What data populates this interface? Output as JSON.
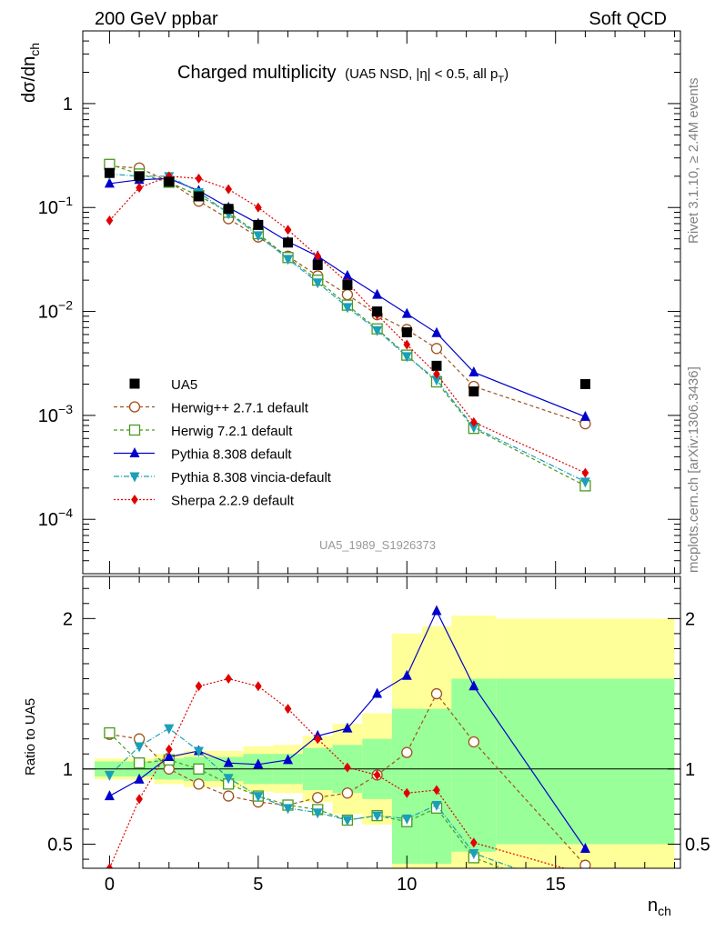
{
  "header": {
    "left": "200 GeV ppbar",
    "right": "Soft QCD"
  },
  "side_labels": {
    "top": "Rivet 3.1.10, ≥ 2.4M events",
    "bottom": "mcplots.cern.ch [arXiv:1306.3436]"
  },
  "chart_data": {
    "type": "line",
    "title": "Charged multiplicity",
    "title_qualifier": "(UA5 NSD, |η| < 0.5, all p",
    "title_qualifier_sub": "T",
    "title_qualifier_end": ")",
    "analysis_tag": "UA5_1989_S1926373",
    "ylabel_main": "dσ/dn",
    "ylabel_main_sub": "ch",
    "ylabel_ratio": "Ratio to UA5",
    "xlabel": "n",
    "xlabel_sub": "ch",
    "xlim": [
      -0.9,
      19.2
    ],
    "ylim_main": [
      3e-05,
      5.0
    ],
    "yscale_main": "log",
    "ylim_ratio": [
      0.34,
      2.28
    ],
    "x_ticks": [
      "0",
      "5",
      "10",
      "15"
    ],
    "y_ticks_main": [
      {
        "value": 1,
        "base": "1",
        "exp": ""
      },
      {
        "value": 0.1,
        "base": "10",
        "exp": "−1"
      },
      {
        "value": 0.01,
        "base": "10",
        "exp": "−2"
      },
      {
        "value": 0.001,
        "base": "10",
        "exp": "−3"
      },
      {
        "value": 0.0001,
        "base": "10",
        "exp": "−4"
      }
    ],
    "y_ticks_ratio": [
      "0.5",
      "1",
      "2"
    ],
    "legend_position": "middle-left",
    "data": {
      "name": "UA5",
      "x": [
        0,
        1,
        2,
        3,
        4,
        5,
        6,
        7,
        8,
        9,
        10,
        11,
        12.25,
        16
      ],
      "y": [
        0.215,
        0.2,
        0.177,
        0.128,
        0.097,
        0.068,
        0.046,
        0.028,
        0.018,
        0.01,
        0.0063,
        0.003,
        0.0017,
        0.002
      ]
    },
    "uncertainty_bands": {
      "edges": [
        -0.5,
        0.5,
        1.5,
        2.5,
        3.5,
        4.5,
        5.5,
        6.5,
        7.5,
        8.5,
        9.5,
        10.5,
        11.5,
        13,
        19
      ],
      "inner": [
        [
          0.95,
          1.05
        ],
        [
          0.95,
          1.05
        ],
        [
          0.93,
          1.07
        ],
        [
          0.92,
          1.08
        ],
        [
          0.92,
          1.08
        ],
        [
          0.9,
          1.1
        ],
        [
          0.9,
          1.1
        ],
        [
          0.86,
          1.14
        ],
        [
          0.84,
          1.16
        ],
        [
          0.8,
          1.2
        ],
        [
          0.37,
          1.4
        ],
        [
          0.37,
          1.4
        ],
        [
          0.45,
          1.6
        ],
        [
          0.5,
          1.6
        ]
      ],
      "outer": [
        [
          0.93,
          1.07
        ],
        [
          0.93,
          1.07
        ],
        [
          0.9,
          1.1
        ],
        [
          0.88,
          1.12
        ],
        [
          0.88,
          1.12
        ],
        [
          0.85,
          1.15
        ],
        [
          0.84,
          1.16
        ],
        [
          0.78,
          1.22
        ],
        [
          0.7,
          1.3
        ],
        [
          0.63,
          1.37
        ],
        [
          0.34,
          1.9
        ],
        [
          0.34,
          1.95
        ],
        [
          0.34,
          2.02
        ],
        [
          0.34,
          2.0
        ]
      ]
    },
    "series": [
      {
        "name": "Herwig++ 2.7.1 default",
        "color": "#a0521e",
        "marker": "open-circle",
        "dash": "4,3",
        "x": [
          0,
          1,
          2,
          3,
          4,
          5,
          6,
          7,
          8,
          9,
          10,
          11,
          12.25,
          16
        ],
        "y": [
          0.25,
          0.24,
          0.177,
          0.115,
          0.078,
          0.052,
          0.034,
          0.022,
          0.0145,
          0.0093,
          0.0067,
          0.0044,
          0.0019,
          0.00083
        ],
        "ratio": [
          1.23,
          1.2,
          1.0,
          0.9,
          0.82,
          0.78,
          0.76,
          0.81,
          0.84,
          0.96,
          1.11,
          1.5,
          1.18,
          0.36
        ]
      },
      {
        "name": "Herwig 7.2.1 default",
        "color": "#4a9a20",
        "marker": "open-square",
        "dash": "4,3",
        "x": [
          0,
          1,
          2,
          3,
          4,
          5,
          6,
          7,
          8,
          9,
          10,
          11,
          12.25,
          16
        ],
        "y": [
          0.26,
          0.21,
          0.175,
          0.13,
          0.09,
          0.056,
          0.033,
          0.02,
          0.0115,
          0.0068,
          0.0038,
          0.0021,
          0.00075,
          0.00021
        ],
        "ratio": [
          1.24,
          1.04,
          1.06,
          1.0,
          0.9,
          0.82,
          0.76,
          0.73,
          0.66,
          0.69,
          0.65,
          0.74,
          0.41,
          0.14
        ]
      },
      {
        "name": "Pythia 8.308 default",
        "color": "#0000cc",
        "marker": "triangle-up",
        "dash": "",
        "x": [
          0,
          1,
          2,
          3,
          4,
          5,
          6,
          7,
          8,
          9,
          10,
          11,
          12.25,
          16
        ],
        "y": [
          0.17,
          0.185,
          0.19,
          0.145,
          0.1,
          0.07,
          0.047,
          0.034,
          0.022,
          0.0145,
          0.0095,
          0.0062,
          0.0026,
          0.00097
        ],
        "ratio": [
          0.82,
          0.93,
          1.08,
          1.12,
          1.04,
          1.03,
          1.06,
          1.22,
          1.27,
          1.5,
          1.62,
          2.05,
          1.55,
          0.47
        ]
      },
      {
        "name": "Pythia 8.308 vincia-default",
        "color": "#1a9fb8",
        "marker": "triangle-down",
        "dash": "6,2,1,2",
        "x": [
          0,
          1,
          2,
          3,
          4,
          5,
          6,
          7,
          8,
          9,
          10,
          11,
          12.25,
          16
        ],
        "y": [
          0.21,
          0.2,
          0.2,
          0.14,
          0.088,
          0.054,
          0.032,
          0.019,
          0.011,
          0.0066,
          0.0037,
          0.0022,
          0.00077,
          0.00023
        ],
        "ratio": [
          0.96,
          1.15,
          1.27,
          1.12,
          0.94,
          0.82,
          0.74,
          0.71,
          0.66,
          0.69,
          0.67,
          0.76,
          0.44,
          0.17
        ]
      },
      {
        "name": "Sherpa 2.2.9 default",
        "color": "#e00000",
        "marker": "diamond",
        "dash": "2,2",
        "x": [
          0,
          1,
          2,
          3,
          4,
          5,
          6,
          7,
          8,
          9,
          10,
          11,
          12.25,
          16
        ],
        "y": [
          0.075,
          0.155,
          0.2,
          0.19,
          0.15,
          0.1,
          0.061,
          0.034,
          0.019,
          0.0093,
          0.0048,
          0.0025,
          0.00086,
          0.00028
        ],
        "ratio": [
          0.34,
          0.8,
          1.13,
          1.55,
          1.6,
          1.55,
          1.4,
          1.2,
          1.01,
          0.96,
          0.84,
          0.86,
          0.51,
          0.3
        ]
      }
    ]
  }
}
